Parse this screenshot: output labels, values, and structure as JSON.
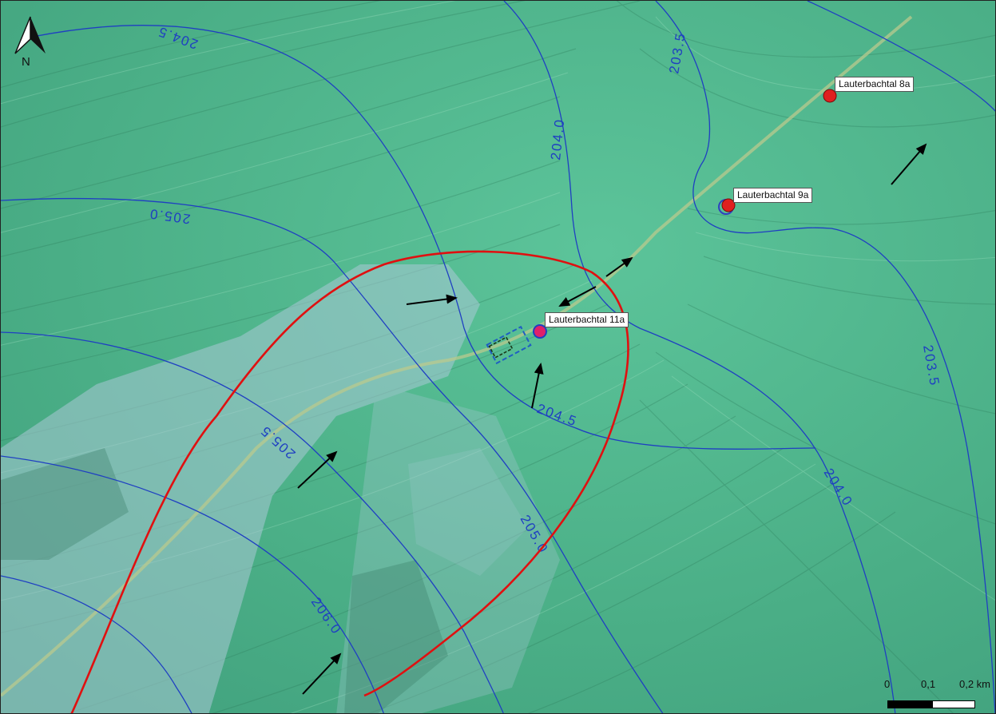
{
  "map": {
    "background_color": "#4fb58a",
    "contour_color": "#1f3fc2",
    "capture_zone_color": "#e01010",
    "well_color": "#e0201f"
  },
  "north_arrow": {
    "label": "N",
    "icon": "north-arrow-icon"
  },
  "contour_labels": [
    "204.5",
    "203.5",
    "204.0",
    "205.0",
    "205.5",
    "204.5",
    "203.5",
    "204.0",
    "205.0",
    "206.0"
  ],
  "wells": [
    {
      "name": "Lauterbachtal 8a"
    },
    {
      "name": "Lauterbachtal 9a"
    },
    {
      "name": "Lauterbachtal 11a"
    }
  ],
  "scale_bar": {
    "ticks": [
      "0",
      "0,1",
      "0,2 km"
    ]
  }
}
